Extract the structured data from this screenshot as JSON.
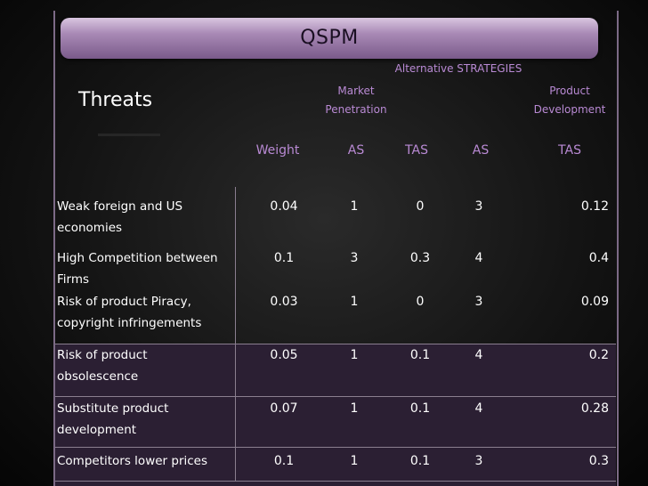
{
  "title": "QSPM",
  "alternative_label": "Alternative STRATEGIES",
  "section_label": "Threats",
  "strategies": [
    {
      "line1": "Market",
      "line2": "Penetration"
    },
    {
      "line1": "Product",
      "line2": "Development"
    }
  ],
  "columns": [
    "Weight",
    "AS",
    "TAS",
    "AS",
    "TAS"
  ],
  "rows": [
    {
      "label": " Weak foreign and US economies",
      "weight": "0.04",
      "as1": "1",
      "tas1": "0",
      "as2": "3",
      "tas2": "0.12"
    },
    {
      "label": "High Competition between Firms",
      "weight": "0.1",
      "as1": "3",
      "tas1": "0.3",
      "as2": "4",
      "tas2": "0.4"
    },
    {
      "label": " Risk of product Piracy, copyright infringements",
      "weight": "0.03",
      "as1": "1",
      "tas1": "0",
      "as2": "3",
      "tas2": "0.09"
    },
    {
      "label": "Risk of product obsolescence",
      "weight": "0.05",
      "as1": "1",
      "tas1": "0.1",
      "as2": "4",
      "tas2": "0.2"
    },
    {
      "label": "Substitute product development",
      "weight": "0.07",
      "as1": "1",
      "tas1": "0.1",
      "as2": "4",
      "tas2": "0.28"
    },
    {
      "label": "Competitors lower prices",
      "weight": "0.1",
      "as1": "1",
      "tas1": "0.1",
      "as2": "3",
      "tas2": "0.3"
    }
  ]
}
